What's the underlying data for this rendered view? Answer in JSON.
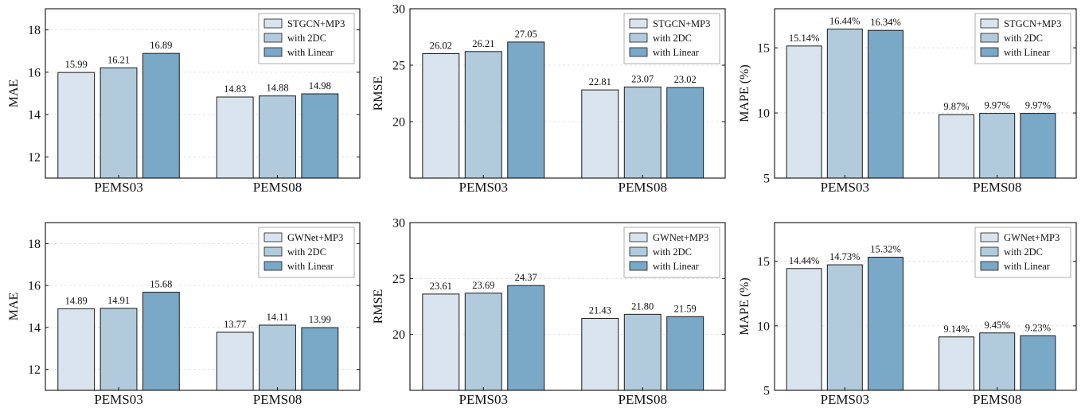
{
  "chart_data": [
    {
      "type": "bar",
      "ylabel": "MAE",
      "ylim": [
        11,
        19
      ],
      "yticks": [
        12,
        14,
        16,
        18
      ],
      "grid": true,
      "legend_position": "top-right",
      "categories": [
        "PEMS03",
        "PEMS08"
      ],
      "series": [
        {
          "name": "STGCN+MP3",
          "values": [
            15.99,
            14.83
          ],
          "labels": [
            "15.99",
            "14.83"
          ],
          "color": "#dae4ef"
        },
        {
          "name": "with 2DC",
          "values": [
            16.21,
            14.88
          ],
          "labels": [
            "16.21",
            "14.88"
          ],
          "color": "#b1cbdd"
        },
        {
          "name": "with Linear",
          "values": [
            16.89,
            14.98
          ],
          "labels": [
            "16.89",
            "14.98"
          ],
          "color": "#7aa8c7"
        }
      ]
    },
    {
      "type": "bar",
      "ylabel": "RMSE",
      "ylim": [
        15,
        30
      ],
      "yticks": [
        20,
        25,
        30
      ],
      "grid": true,
      "legend_position": "top-right",
      "categories": [
        "PEMS03",
        "PEMS08"
      ],
      "series": [
        {
          "name": "STGCN+MP3",
          "values": [
            26.02,
            22.81
          ],
          "labels": [
            "26.02",
            "22.81"
          ],
          "color": "#dae4ef"
        },
        {
          "name": "with 2DC",
          "values": [
            26.21,
            23.07
          ],
          "labels": [
            "26.21",
            "23.07"
          ],
          "color": "#b1cbdd"
        },
        {
          "name": "with Linear",
          "values": [
            27.05,
            23.02
          ],
          "labels": [
            "27.05",
            "23.02"
          ],
          "color": "#7aa8c7"
        }
      ]
    },
    {
      "type": "bar",
      "ylabel": "MAPE (%)",
      "ylim": [
        5,
        18
      ],
      "yticks": [
        5,
        10,
        15
      ],
      "grid": true,
      "legend_position": "top-right",
      "categories": [
        "PEMS03",
        "PEMS08"
      ],
      "series": [
        {
          "name": "STGCN+MP3",
          "values": [
            15.14,
            9.87
          ],
          "labels": [
            "15.14%",
            "9.87%"
          ],
          "color": "#dae4ef"
        },
        {
          "name": "with 2DC",
          "values": [
            16.44,
            9.97
          ],
          "labels": [
            "16.44%",
            "9.97%"
          ],
          "color": "#b1cbdd"
        },
        {
          "name": "with Linear",
          "values": [
            16.34,
            9.97
          ],
          "labels": [
            "16.34%",
            "9.97%"
          ],
          "color": "#7aa8c7"
        }
      ]
    },
    {
      "type": "bar",
      "ylabel": "MAE",
      "ylim": [
        11,
        19
      ],
      "yticks": [
        12,
        14,
        16,
        18
      ],
      "grid": true,
      "legend_position": "top-right",
      "categories": [
        "PEMS03",
        "PEMS08"
      ],
      "series": [
        {
          "name": "GWNet+MP3",
          "values": [
            14.89,
            13.77
          ],
          "labels": [
            "14.89",
            "13.77"
          ],
          "color": "#dae4ef"
        },
        {
          "name": "with 2DC",
          "values": [
            14.91,
            14.11
          ],
          "labels": [
            "14.91",
            "14.11"
          ],
          "color": "#b1cbdd"
        },
        {
          "name": "with Linear",
          "values": [
            15.68,
            13.99
          ],
          "labels": [
            "15.68",
            "13.99"
          ],
          "color": "#7aa8c7"
        }
      ]
    },
    {
      "type": "bar",
      "ylabel": "RMSE",
      "ylim": [
        15,
        30
      ],
      "yticks": [
        20,
        25,
        30
      ],
      "grid": true,
      "legend_position": "top-right",
      "categories": [
        "PEMS03",
        "PEMS08"
      ],
      "series": [
        {
          "name": "GWNet+MP3",
          "values": [
            23.61,
            21.43
          ],
          "labels": [
            "23.61",
            "21.43"
          ],
          "color": "#dae4ef"
        },
        {
          "name": "with 2DC",
          "values": [
            23.69,
            21.8
          ],
          "labels": [
            "23.69",
            "21.80"
          ],
          "color": "#b1cbdd"
        },
        {
          "name": "with Linear",
          "values": [
            24.37,
            21.59
          ],
          "labels": [
            "24.37",
            "21.59"
          ],
          "color": "#7aa8c7"
        }
      ]
    },
    {
      "type": "bar",
      "ylabel": "MAPE (%)",
      "ylim": [
        5,
        18
      ],
      "yticks": [
        5,
        10,
        15
      ],
      "grid": true,
      "legend_position": "top-right",
      "categories": [
        "PEMS03",
        "PEMS08"
      ],
      "series": [
        {
          "name": "GWNet+MP3",
          "values": [
            14.44,
            9.14
          ],
          "labels": [
            "14.44%",
            "9.14%"
          ],
          "color": "#dae4ef"
        },
        {
          "name": "with 2DC",
          "values": [
            14.73,
            9.45
          ],
          "labels": [
            "14.73%",
            "9.45%"
          ],
          "color": "#b1cbdd"
        },
        {
          "name": "with Linear",
          "values": [
            15.32,
            9.23
          ],
          "labels": [
            "15.32%",
            "9.23%"
          ],
          "color": "#7aa8c7"
        }
      ]
    }
  ]
}
